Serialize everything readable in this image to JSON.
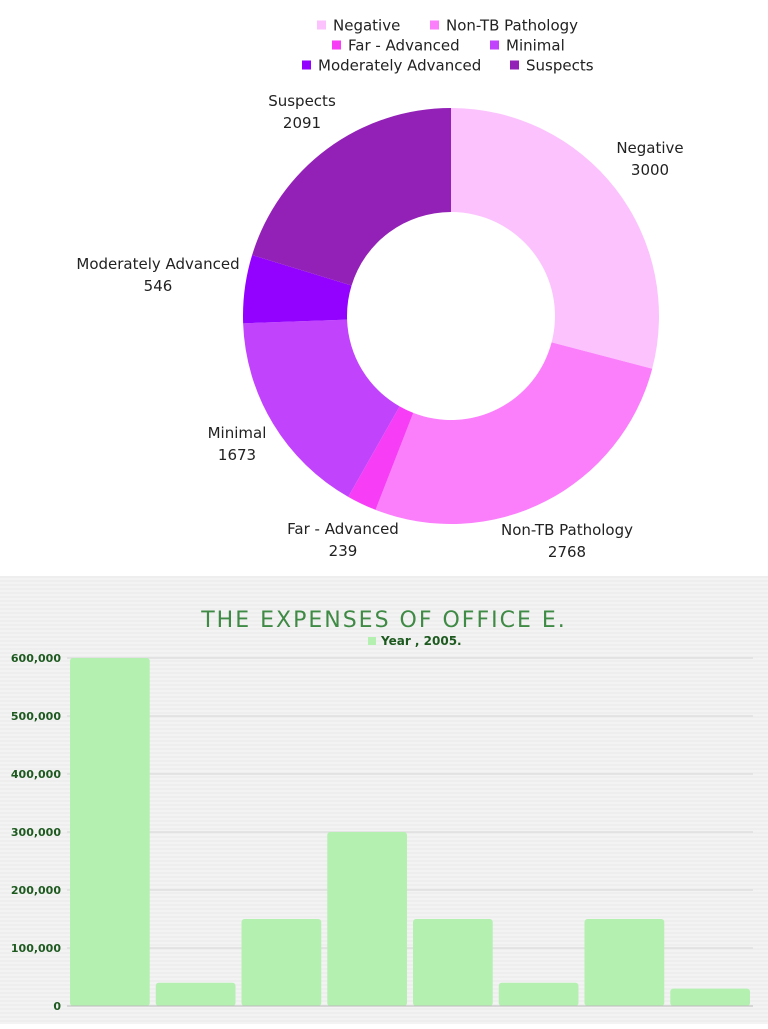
{
  "chart_data": [
    {
      "type": "pie",
      "donut": true,
      "legend_position": "top",
      "categories": [
        "Negative",
        "Non-TB Pathology",
        "Far - Advanced",
        "Minimal",
        "Moderately Advanced",
        "Suspects"
      ],
      "values": [
        3000,
        2768,
        239,
        1673,
        546,
        2091
      ],
      "colors": [
        "#fbc2fd",
        "#fb7efb",
        "#f73ef6",
        "#c143fb",
        "#9302fe",
        "#9321b7"
      ]
    },
    {
      "type": "bar",
      "title": "THE EXPENSES OF OFFICE E.",
      "legend_position": "top",
      "series": [
        {
          "name": "Year , 2005.",
          "values": [
            600000,
            40000,
            150000,
            300000,
            150000,
            40000,
            150000,
            30000
          ]
        }
      ],
      "categories": [
        "",
        "",
        "",
        "",
        "",
        "",
        "",
        ""
      ],
      "y_ticks": [
        "600,000",
        "500,000",
        "400,000",
        "300,000",
        "200,000",
        "100,000",
        "0"
      ],
      "ylim": [
        0,
        600000
      ],
      "grid": true,
      "colors": {
        "bar": "#b4f1b1",
        "title": "#3f8a45",
        "axis_text": "#1e5a20",
        "grid": "#d6d6d6"
      }
    }
  ]
}
